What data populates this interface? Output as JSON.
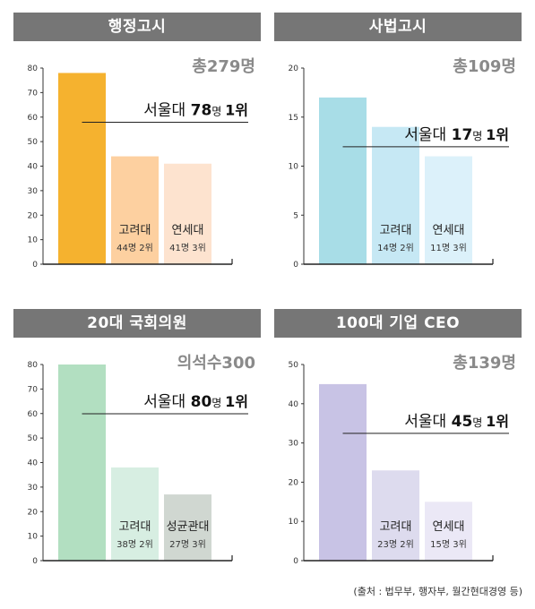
{
  "source_note": "(출처 : 법무부, 행자부, 월간현대경영 등)",
  "chart_data": [
    {
      "type": "bar",
      "title": "행정고시",
      "total_label": "총279명",
      "ylim": [
        0,
        80
      ],
      "yticks": [
        0,
        10,
        20,
        30,
        40,
        50,
        60,
        70,
        80
      ],
      "colors": [
        "#f5b22f",
        "#fdd0a0",
        "#fde3cf"
      ],
      "highlight": {
        "name": "서울대",
        "count": "78",
        "unit": "명",
        "rank": "1위"
      },
      "categories": [
        "서울대",
        "고려대",
        "연세대"
      ],
      "values": [
        78,
        44,
        41
      ],
      "bar_labels": [
        {
          "name": "",
          "count": ""
        },
        {
          "name": "고려대",
          "count": "44명 2위"
        },
        {
          "name": "연세대",
          "count": "41명 3위"
        }
      ]
    },
    {
      "type": "bar",
      "title": "사법고시",
      "total_label": "총109명",
      "ylim": [
        0,
        20
      ],
      "yticks": [
        0,
        5,
        10,
        15,
        20
      ],
      "colors": [
        "#a8dde7",
        "#c6e8f4",
        "#dcf1fa"
      ],
      "highlight": {
        "name": "서울대",
        "count": "17",
        "unit": "명",
        "rank": "1위"
      },
      "categories": [
        "서울대",
        "고려대",
        "연세대"
      ],
      "values": [
        17,
        14,
        11
      ],
      "bar_labels": [
        {
          "name": "",
          "count": ""
        },
        {
          "name": "고려대",
          "count": "14명 2위"
        },
        {
          "name": "연세대",
          "count": "11명 3위"
        }
      ]
    },
    {
      "type": "bar",
      "title": "20대 국회의원",
      "total_label": "의석수300",
      "ylim": [
        0,
        80
      ],
      "yticks": [
        0,
        10,
        20,
        30,
        40,
        50,
        60,
        70,
        80
      ],
      "colors": [
        "#b2dfc1",
        "#d7eee2",
        "#d0d7d1"
      ],
      "highlight": {
        "name": "서울대",
        "count": "80",
        "unit": "명",
        "rank": "1위"
      },
      "categories": [
        "서울대",
        "고려대",
        "성균관대"
      ],
      "values": [
        80,
        38,
        27
      ],
      "bar_labels": [
        {
          "name": "",
          "count": ""
        },
        {
          "name": "고려대",
          "count": "38명 2위"
        },
        {
          "name": "성균관대",
          "count": "27명 3위"
        }
      ]
    },
    {
      "type": "bar",
      "title": "100대 기업 CEO",
      "total_label": "총139명",
      "ylim": [
        0,
        50
      ],
      "yticks": [
        0,
        10,
        20,
        30,
        40,
        50
      ],
      "colors": [
        "#c8c3e5",
        "#dddbee",
        "#ebe8f6"
      ],
      "highlight": {
        "name": "서울대",
        "count": "45",
        "unit": "명",
        "rank": "1위"
      },
      "categories": [
        "서울대",
        "고려대",
        "연세대"
      ],
      "values": [
        45,
        23,
        15
      ],
      "bar_labels": [
        {
          "name": "",
          "count": ""
        },
        {
          "name": "고려대",
          "count": "23명 2위"
        },
        {
          "name": "연세대",
          "count": "15명 3위"
        }
      ]
    }
  ]
}
